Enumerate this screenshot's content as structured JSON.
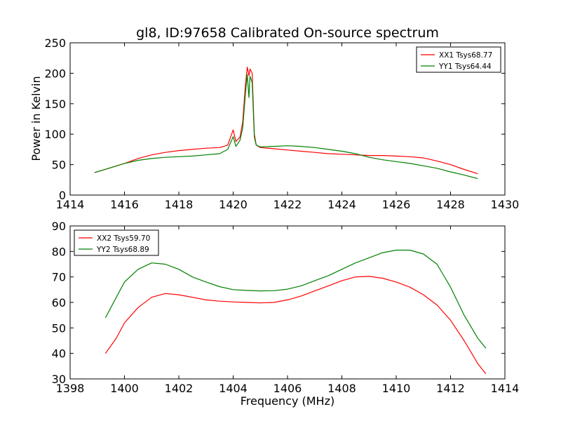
{
  "figure": {
    "title": "gl8, ID:97658 Calibrated On-source spectrum",
    "ylabel": "Power in Kelvin",
    "xlabel": "Frequency (MHz)"
  },
  "chart_data": [
    {
      "type": "line",
      "xlim": [
        1414,
        1430
      ],
      "ylim": [
        0,
        250
      ],
      "xticks": [
        "1414",
        "1416",
        "1418",
        "1420",
        "1422",
        "1424",
        "1426",
        "1428",
        "1430"
      ],
      "yticks": [
        "0",
        "50",
        "100",
        "150",
        "200",
        "250"
      ],
      "legend_position": "top-right",
      "series": [
        {
          "name": "XX1 Tsys68.77",
          "color": "#ff0000",
          "points": [
            [
              1414.9,
              37
            ],
            [
              1415.5,
              45
            ],
            [
              1416,
              52
            ],
            [
              1416.5,
              60
            ],
            [
              1417,
              66
            ],
            [
              1417.5,
              70
            ],
            [
              1418,
              73
            ],
            [
              1418.5,
              75
            ],
            [
              1419,
              77
            ],
            [
              1419.5,
              78
            ],
            [
              1419.8,
              82
            ],
            [
              1420,
              107
            ],
            [
              1420.1,
              88
            ],
            [
              1420.25,
              95
            ],
            [
              1420.35,
              120
            ],
            [
              1420.45,
              180
            ],
            [
              1420.52,
              210
            ],
            [
              1420.58,
              196
            ],
            [
              1420.62,
              207
            ],
            [
              1420.7,
              200
            ],
            [
              1420.78,
              100
            ],
            [
              1420.85,
              82
            ],
            [
              1421,
              78
            ],
            [
              1421.5,
              76
            ],
            [
              1422,
              74
            ],
            [
              1422.5,
              72
            ],
            [
              1423,
              70
            ],
            [
              1423.5,
              68
            ],
            [
              1424,
              67
            ],
            [
              1424.5,
              66
            ],
            [
              1425,
              65
            ],
            [
              1425.5,
              65
            ],
            [
              1426,
              64
            ],
            [
              1426.5,
              63
            ],
            [
              1427,
              61
            ],
            [
              1427.5,
              56
            ],
            [
              1428,
              50
            ],
            [
              1428.5,
              42
            ],
            [
              1429,
              35
            ]
          ]
        },
        {
          "name": "YY1 Tsys64.44",
          "color": "#008000",
          "points": [
            [
              1414.9,
              37
            ],
            [
              1415.5,
              45
            ],
            [
              1416,
              52
            ],
            [
              1416.5,
              57
            ],
            [
              1417,
              60
            ],
            [
              1417.5,
              62
            ],
            [
              1418,
              63
            ],
            [
              1418.5,
              64
            ],
            [
              1419,
              66
            ],
            [
              1419.5,
              68
            ],
            [
              1419.8,
              75
            ],
            [
              1420,
              96
            ],
            [
              1420.1,
              80
            ],
            [
              1420.25,
              90
            ],
            [
              1420.35,
              110
            ],
            [
              1420.45,
              165
            ],
            [
              1420.52,
              198
            ],
            [
              1420.58,
              160
            ],
            [
              1420.62,
              195
            ],
            [
              1420.7,
              185
            ],
            [
              1420.78,
              95
            ],
            [
              1420.85,
              82
            ],
            [
              1421,
              79
            ],
            [
              1421.5,
              80
            ],
            [
              1422,
              81
            ],
            [
              1422.5,
              80
            ],
            [
              1423,
              78
            ],
            [
              1423.5,
              75
            ],
            [
              1424,
              72
            ],
            [
              1424.5,
              68
            ],
            [
              1425,
              62
            ],
            [
              1425.5,
              58
            ],
            [
              1426,
              55
            ],
            [
              1426.5,
              52
            ],
            [
              1427,
              48
            ],
            [
              1427.5,
              44
            ],
            [
              1428,
              38
            ],
            [
              1428.5,
              33
            ],
            [
              1429,
              27
            ]
          ]
        }
      ]
    },
    {
      "type": "line",
      "xlim": [
        1398,
        1414
      ],
      "ylim": [
        30,
        90
      ],
      "xticks": [
        "1398",
        "1400",
        "1402",
        "1404",
        "1406",
        "1408",
        "1410",
        "1412",
        "1414"
      ],
      "yticks": [
        "30",
        "40",
        "50",
        "60",
        "70",
        "80",
        "90"
      ],
      "legend_position": "top-left",
      "series": [
        {
          "name": "XX2 Tsys59.70",
          "color": "#ff0000",
          "points": [
            [
              1399.3,
              40
            ],
            [
              1399.7,
              46
            ],
            [
              1400,
              52
            ],
            [
              1400.5,
              58
            ],
            [
              1401,
              62
            ],
            [
              1401.5,
              63.5
            ],
            [
              1402,
              63
            ],
            [
              1402.5,
              62
            ],
            [
              1403,
              61
            ],
            [
              1403.5,
              60.5
            ],
            [
              1404,
              60.2
            ],
            [
              1404.5,
              60
            ],
            [
              1405,
              59.8
            ],
            [
              1405.5,
              60
            ],
            [
              1406,
              61
            ],
            [
              1406.5,
              62.5
            ],
            [
              1407,
              64.5
            ],
            [
              1407.5,
              66.5
            ],
            [
              1408,
              68.5
            ],
            [
              1408.5,
              70
            ],
            [
              1409,
              70.2
            ],
            [
              1409.5,
              69.5
            ],
            [
              1410,
              68
            ],
            [
              1410.5,
              66
            ],
            [
              1411,
              63
            ],
            [
              1411.5,
              59
            ],
            [
              1412,
              53
            ],
            [
              1412.5,
              45
            ],
            [
              1413,
              36
            ],
            [
              1413.3,
              32
            ]
          ]
        },
        {
          "name": "YY2 Tsys68.89",
          "color": "#008000",
          "points": [
            [
              1399.3,
              54
            ],
            [
              1399.7,
              62
            ],
            [
              1400,
              68
            ],
            [
              1400.5,
              73
            ],
            [
              1401,
              75.5
            ],
            [
              1401.5,
              75
            ],
            [
              1402,
              73
            ],
            [
              1402.5,
              70
            ],
            [
              1403,
              68
            ],
            [
              1403.5,
              66.2
            ],
            [
              1404,
              65
            ],
            [
              1404.5,
              64.7
            ],
            [
              1405,
              64.5
            ],
            [
              1405.5,
              64.6
            ],
            [
              1406,
              65.2
            ],
            [
              1406.5,
              66.5
            ],
            [
              1407,
              68.5
            ],
            [
              1407.5,
              70.5
            ],
            [
              1408,
              73
            ],
            [
              1408.5,
              75.5
            ],
            [
              1409,
              77.5
            ],
            [
              1409.5,
              79.5
            ],
            [
              1410,
              80.5
            ],
            [
              1410.5,
              80.5
            ],
            [
              1411,
              79
            ],
            [
              1411.5,
              75
            ],
            [
              1412,
              66
            ],
            [
              1412.5,
              55
            ],
            [
              1413,
              46
            ],
            [
              1413.3,
              42
            ]
          ]
        }
      ]
    }
  ]
}
